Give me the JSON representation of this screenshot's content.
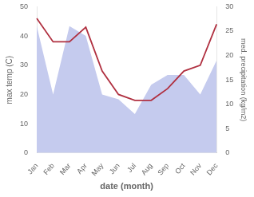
{
  "chart_data": {
    "type": "line",
    "categories": [
      "Jan",
      "Feb",
      "Mar",
      "Apr",
      "May",
      "Jun",
      "Jul",
      "Aug",
      "Sep",
      "Oct",
      "Nov",
      "Dec"
    ],
    "series": [
      {
        "type": "area",
        "color": "#c5cbee",
        "axis": "y2",
        "values": [
          26,
          12,
          26,
          24,
          12,
          11,
          8,
          14,
          16,
          16,
          12,
          19
        ]
      },
      {
        "type": "line",
        "color": "#b03040",
        "values": [
          46,
          38,
          38,
          43,
          28,
          20,
          18,
          18,
          22,
          28,
          30,
          44
        ]
      }
    ],
    "xlabel": "date (month)",
    "ylabel": "max temp (C)",
    "y2label": "med. precipitation (kg/m2)",
    "ylim": [
      0,
      50
    ],
    "yticks": [
      0,
      10,
      20,
      30,
      40,
      50
    ],
    "y2lim": [
      0,
      30
    ],
    "y2ticks": [
      0,
      5,
      10,
      15,
      20,
      25,
      30
    ],
    "grid": false
  }
}
